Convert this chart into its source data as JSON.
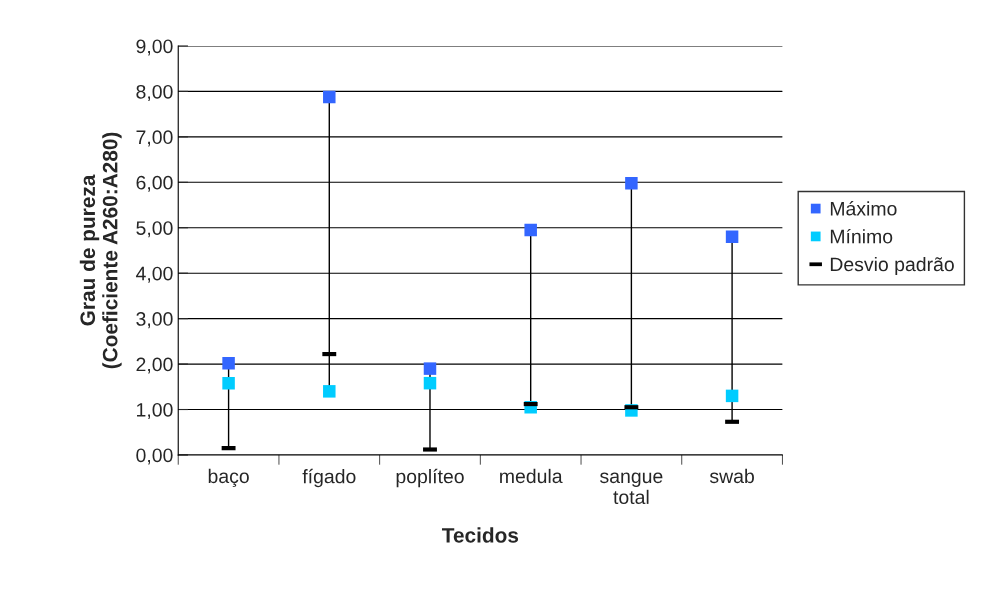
{
  "chart_data": {
    "type": "scatter",
    "xlabel": "Tecidos",
    "ylabel": "Grau de pureza\n(Coeficiente A260:A280)",
    "categories": [
      "baço",
      "fígado",
      "poplíteo",
      "medula",
      "sangue\ntotal",
      "swab"
    ],
    "series": [
      {
        "name": "Máximo",
        "color": "#3366ff",
        "marker": "square",
        "values": [
          2.02,
          7.88,
          1.9,
          4.95,
          5.98,
          4.8
        ]
      },
      {
        "name": "Mínimo",
        "color": "#00ccff",
        "marker": "square",
        "values": [
          1.58,
          1.4,
          1.58,
          1.05,
          0.98,
          1.3
        ]
      },
      {
        "name": "Desvio padrão",
        "color": "#000000",
        "values": [
          0.15,
          2.22,
          0.12,
          1.12,
          1.05,
          0.73
        ]
      }
    ],
    "ylim": [
      0,
      9
    ],
    "yticks": [
      {
        "value": 0,
        "label": "0,00"
      },
      {
        "value": 1,
        "label": "1,00"
      },
      {
        "value": 2,
        "label": "2,00"
      },
      {
        "value": 3,
        "label": "3,00"
      },
      {
        "value": 4,
        "label": "4,00"
      },
      {
        "value": 5,
        "label": "5,00"
      },
      {
        "value": 6,
        "label": "6,00"
      },
      {
        "value": 7,
        "label": "7,00"
      },
      {
        "value": 8,
        "label": "8,00"
      },
      {
        "value": 9,
        "label": "9,00"
      }
    ],
    "grid": "y",
    "legend": "right"
  }
}
